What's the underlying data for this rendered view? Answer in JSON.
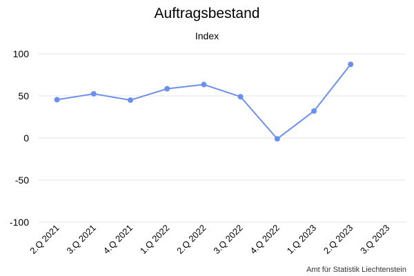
{
  "title": "Auftragsbestand",
  "subtitle": "Index",
  "credit": "Amt für Statistik Liechtenstein",
  "chart_data": {
    "type": "line",
    "title": "Auftragsbestand",
    "subtitle": "Index",
    "categories": [
      "2.Q 2021",
      "3.Q 2021",
      "4.Q 2021",
      "1.Q 2022",
      "2.Q 2022",
      "3.Q 2022",
      "4.Q 2022",
      "1.Q 2023",
      "2.Q 2023",
      "3.Q 2023"
    ],
    "series": [
      {
        "values": [
          45.5,
          52.5,
          45,
          58.5,
          63.5,
          49,
          -1,
          32,
          87.5,
          null
        ]
      }
    ],
    "ylim": [
      -100,
      100
    ],
    "yticks": [
      100,
      50,
      0,
      -50,
      -100
    ],
    "grid": true,
    "legend": "none",
    "color": "#6b8ff0",
    "gridColor": "#e6e6e6"
  }
}
